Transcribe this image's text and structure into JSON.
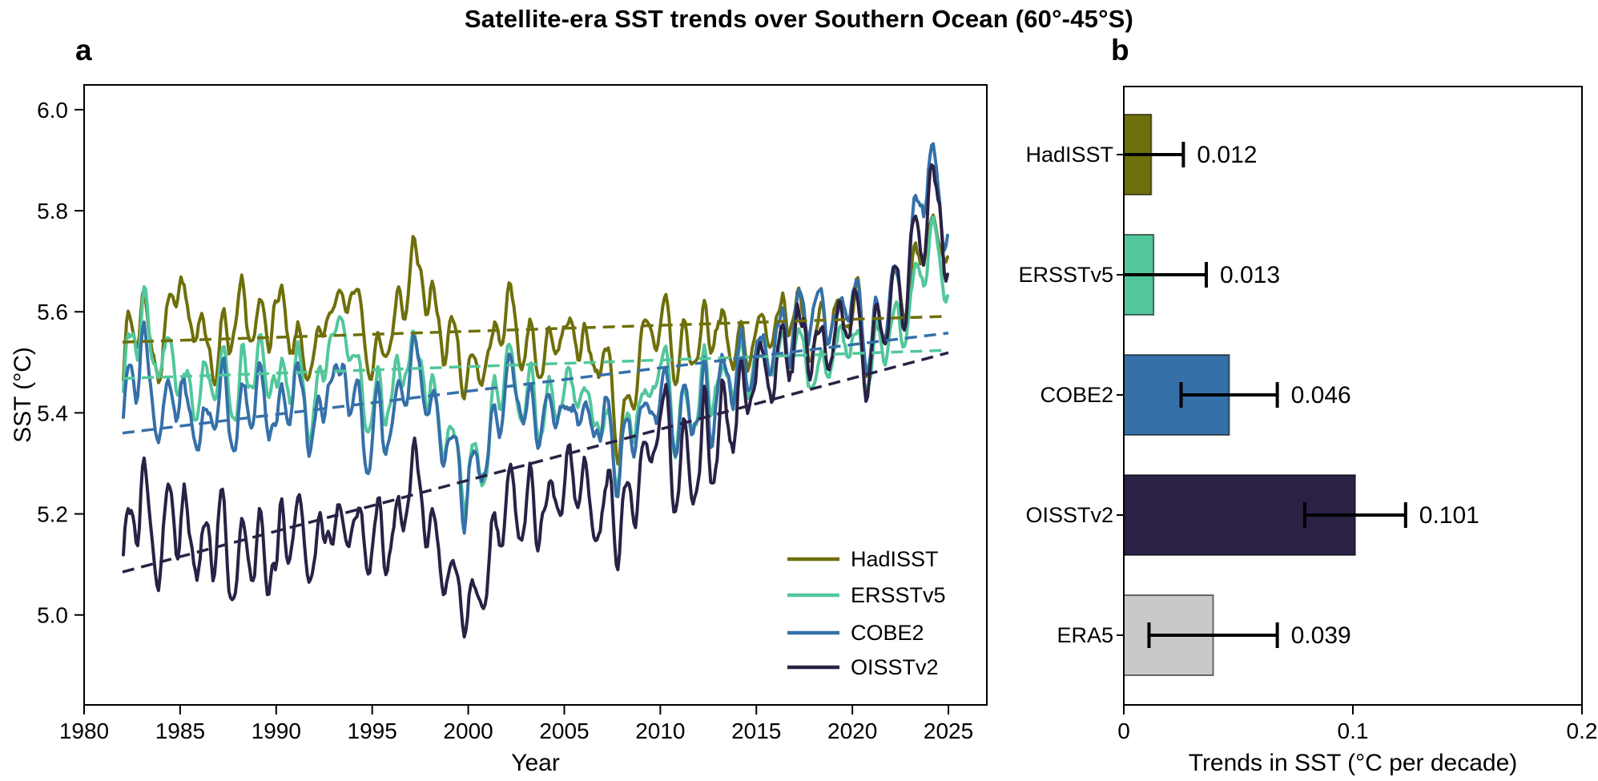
{
  "title": "Satellite-era SST trends over Southern Ocean (60°-45°S)",
  "panels": {
    "a": {
      "label": "a"
    },
    "b": {
      "label": "b"
    }
  },
  "colors": {
    "HadISST": "#6f6f0b",
    "ERSSTv5": "#52c79b",
    "COBE2": "#3570a9",
    "OISSTv2": "#2a2145",
    "ERA5": "#c9c9c9",
    "axis": "#000000",
    "background": "#ffffff"
  },
  "chart_data": [
    {
      "type": "line",
      "panel": "a",
      "xlabel": "Year",
      "ylabel": "SST (°C)",
      "xlim": [
        1980,
        2027
      ],
      "ylim": [
        4.82,
        6.05
      ],
      "xticks": [
        1980,
        1985,
        1990,
        1995,
        2000,
        2005,
        2010,
        2015,
        2020,
        2025
      ],
      "xtick_labels": [
        "1980",
        "1985",
        "1990",
        "1995",
        "2000",
        "2005",
        "2010",
        "2015",
        "2020",
        "2025"
      ],
      "yticks": [
        5.0,
        5.2,
        5.4,
        5.6,
        5.8,
        6.0
      ],
      "ytick_labels": [
        "5.0",
        "5.2",
        "5.4",
        "5.6",
        "5.8",
        "6.0"
      ],
      "legend_position": "lower right",
      "data_resolution": "monthly 1982–2024; values below are annual means read from the plot",
      "anchor_years": [
        1982,
        1983,
        1984,
        1985,
        1986,
        1987,
        1988,
        1989,
        1990,
        1991,
        1992,
        1993,
        1994,
        1995,
        1996,
        1997,
        1998,
        1999,
        2000,
        2001,
        2002,
        2003,
        2004,
        2005,
        2006,
        2007,
        2008,
        2009,
        2010,
        2011,
        2012,
        2013,
        2014,
        2015,
        2016,
        2017,
        2018,
        2019,
        2020,
        2021,
        2022,
        2023,
        2024,
        2025
      ],
      "series": [
        {
          "name": "HadISST",
          "color": "#6f6f0b",
          "values": [
            5.5,
            5.62,
            5.52,
            5.68,
            5.56,
            5.5,
            5.6,
            5.54,
            5.62,
            5.52,
            5.49,
            5.64,
            5.62,
            5.5,
            5.57,
            5.66,
            5.62,
            5.53,
            5.47,
            5.52,
            5.58,
            5.55,
            5.52,
            5.56,
            5.52,
            5.52,
            5.35,
            5.55,
            5.58,
            5.52,
            5.55,
            5.58,
            5.55,
            5.52,
            5.58,
            5.61,
            5.55,
            5.58,
            5.64,
            5.55,
            5.6,
            5.66,
            5.77,
            5.72
          ],
          "trend_line": {
            "start_year": 1982,
            "end_year": 2025,
            "start_value": 5.54,
            "end_value": 5.591,
            "per_decade": 0.012
          }
        },
        {
          "name": "ERSSTv5",
          "color": "#52c79b",
          "values": [
            5.48,
            5.6,
            5.52,
            5.47,
            5.42,
            5.5,
            5.44,
            5.5,
            5.44,
            5.48,
            5.41,
            5.6,
            5.48,
            5.41,
            5.45,
            5.52,
            5.44,
            5.34,
            5.27,
            5.36,
            5.48,
            5.44,
            5.41,
            5.45,
            5.42,
            5.38,
            5.33,
            5.45,
            5.48,
            5.39,
            5.44,
            5.47,
            5.5,
            5.48,
            5.52,
            5.52,
            5.47,
            5.52,
            5.59,
            5.49,
            5.55,
            5.64,
            5.74,
            5.69
          ],
          "trend_line": {
            "start_year": 1982,
            "end_year": 2025,
            "start_value": 5.468,
            "end_value": 5.524,
            "per_decade": 0.013
          }
        },
        {
          "name": "COBE2",
          "color": "#3570a9",
          "values": [
            5.36,
            5.54,
            5.41,
            5.47,
            5.37,
            5.42,
            5.39,
            5.42,
            5.39,
            5.45,
            5.37,
            5.48,
            5.39,
            5.37,
            5.42,
            5.48,
            5.41,
            5.31,
            5.27,
            5.34,
            5.45,
            5.42,
            5.39,
            5.42,
            5.39,
            5.37,
            5.31,
            5.42,
            5.45,
            5.37,
            5.42,
            5.45,
            5.48,
            5.5,
            5.55,
            5.57,
            5.59,
            5.57,
            5.66,
            5.55,
            5.61,
            5.73,
            5.88,
            5.77
          ],
          "trend_line": {
            "start_year": 1982,
            "end_year": 2025,
            "start_value": 5.36,
            "end_value": 5.558,
            "per_decade": 0.046
          }
        },
        {
          "name": "OISSTv2",
          "color": "#2a2145",
          "values": [
            5.12,
            5.27,
            5.14,
            5.24,
            5.11,
            5.17,
            5.11,
            5.14,
            5.11,
            5.19,
            5.11,
            5.21,
            5.14,
            5.14,
            5.19,
            5.24,
            5.17,
            5.07,
            5.01,
            5.11,
            5.24,
            5.24,
            5.21,
            5.24,
            5.27,
            5.21,
            5.19,
            5.31,
            5.37,
            5.27,
            5.34,
            5.37,
            5.41,
            5.44,
            5.51,
            5.54,
            5.54,
            5.54,
            5.63,
            5.52,
            5.59,
            5.71,
            5.84,
            5.74
          ],
          "trend_line": {
            "start_year": 1982,
            "end_year": 2025,
            "start_value": 5.085,
            "end_value": 5.519,
            "per_decade": 0.101
          }
        }
      ]
    },
    {
      "type": "bar",
      "panel": "b",
      "orientation": "horizontal",
      "xlabel": "Trends in SST (°C per decade)",
      "xlim": [
        0,
        0.2
      ],
      "xticks": [
        0,
        0.1,
        0.2
      ],
      "xtick_labels": [
        "0",
        "0.1",
        "0.2"
      ],
      "categories": [
        "HadISST",
        "ERSSTv5",
        "COBE2",
        "OISSTv2",
        "ERA5"
      ],
      "values": [
        0.012,
        0.013,
        0.046,
        0.101,
        0.039
      ],
      "value_labels": [
        "0.012",
        "0.013",
        "0.046",
        "0.101",
        "0.039"
      ],
      "error_minus": [
        0.014,
        0.023,
        0.021,
        0.022,
        0.028
      ],
      "error_plus": [
        0.014,
        0.023,
        0.021,
        0.022,
        0.028
      ],
      "bar_colors": [
        "#6f6f0b",
        "#52c79b",
        "#3570a9",
        "#2a2145",
        "#c9c9c9"
      ]
    }
  ]
}
